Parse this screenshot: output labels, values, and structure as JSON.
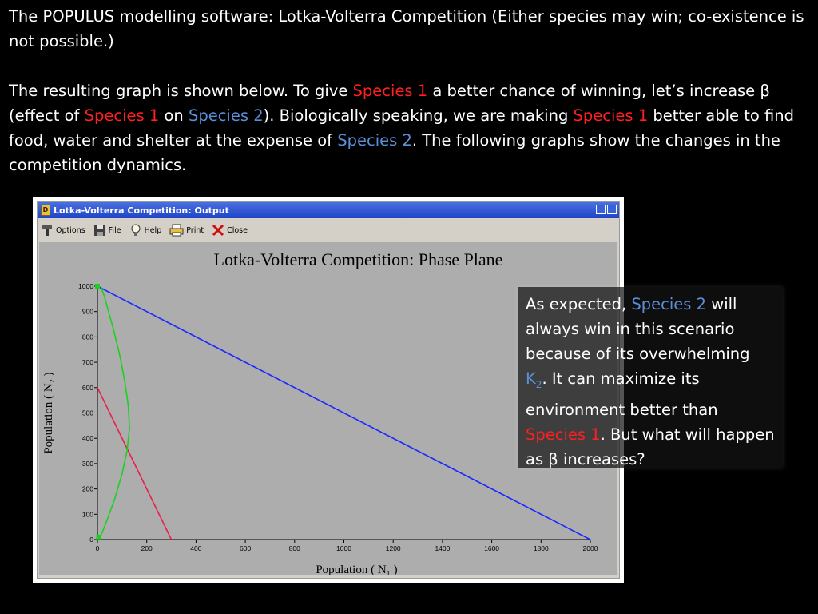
{
  "slide": {
    "heading_line": "The POPULUS modelling software: Lotka-Volterra Competition (Either species may win; co-existence is not possible.)",
    "para": {
      "t1": "The resulting graph is shown below.  To give ",
      "s1a": "Species 1",
      "t2": " a better chance of winning, let’s increase β (effect of ",
      "s1b": "Species 1",
      "t3": " on ",
      "s2a": "Species 2",
      "t4": ").  Biologically speaking, we are making ",
      "s1c": "Species 1",
      "t5": " better able to find food, water and shelter at the expense of ",
      "s2b": "Species 2",
      "t6": ".  The following graphs show the changes in the competition dynamics."
    }
  },
  "window": {
    "title": "Lotka-Volterra Competition: Output",
    "icon_letter": "D",
    "toolbar": [
      {
        "label": "Options",
        "icon": "options-icon"
      },
      {
        "label": "File",
        "icon": "floppy-icon"
      },
      {
        "label": "Help",
        "icon": "lightbulb-icon"
      },
      {
        "label": "Print",
        "icon": "printer-icon"
      },
      {
        "label": "Close",
        "icon": "close-x-icon"
      }
    ]
  },
  "chart_data": {
    "type": "line",
    "title": "Lotka-Volterra Competition: Phase Plane",
    "xlabel": "Population ( N₁ )",
    "ylabel": "Population ( N₂ )",
    "xlim": [
      0,
      2000
    ],
    "ylim": [
      0,
      1000
    ],
    "xticks": [
      0,
      200,
      400,
      600,
      800,
      1000,
      1200,
      1400,
      1600,
      1800,
      2000
    ],
    "yticks": [
      0,
      100,
      200,
      300,
      400,
      500,
      600,
      700,
      800,
      900,
      1000
    ],
    "background": "#adadad",
    "series": [
      {
        "color": "#1a2bff",
        "x": [
          0,
          2000
        ],
        "y": [
          1000,
          0
        ]
      },
      {
        "color": "#e8204a",
        "x": [
          0,
          300
        ],
        "y": [
          600,
          0
        ]
      },
      {
        "color": "#19d21c",
        "x": [
          5,
          10,
          20,
          40,
          70,
          100,
          120,
          130,
          125,
          110,
          90,
          65,
          45,
          28,
          15
        ],
        "y": [
          3,
          10,
          30,
          80,
          160,
          260,
          350,
          440,
          530,
          630,
          730,
          830,
          900,
          960,
          995
        ]
      }
    ],
    "markers": [
      {
        "color": "#19d21c",
        "x": 5,
        "y": 10
      },
      {
        "color": "#19d21c",
        "x": 0,
        "y": 1000
      }
    ]
  },
  "callout": {
    "t1": "As expected, ",
    "s2": "Species 2",
    "t2": " will always win in this scenario because of its overwhelming ",
    "k": "K",
    "ksub": "2",
    "t3": ".  It can maximize its environment better than ",
    "s1": "Species 1",
    "t4": ".  But what will happen as β increases?"
  },
  "colors": {
    "species1": "#ff2020",
    "species2": "#5b8fd9",
    "titlebar": "#2a50d0"
  }
}
